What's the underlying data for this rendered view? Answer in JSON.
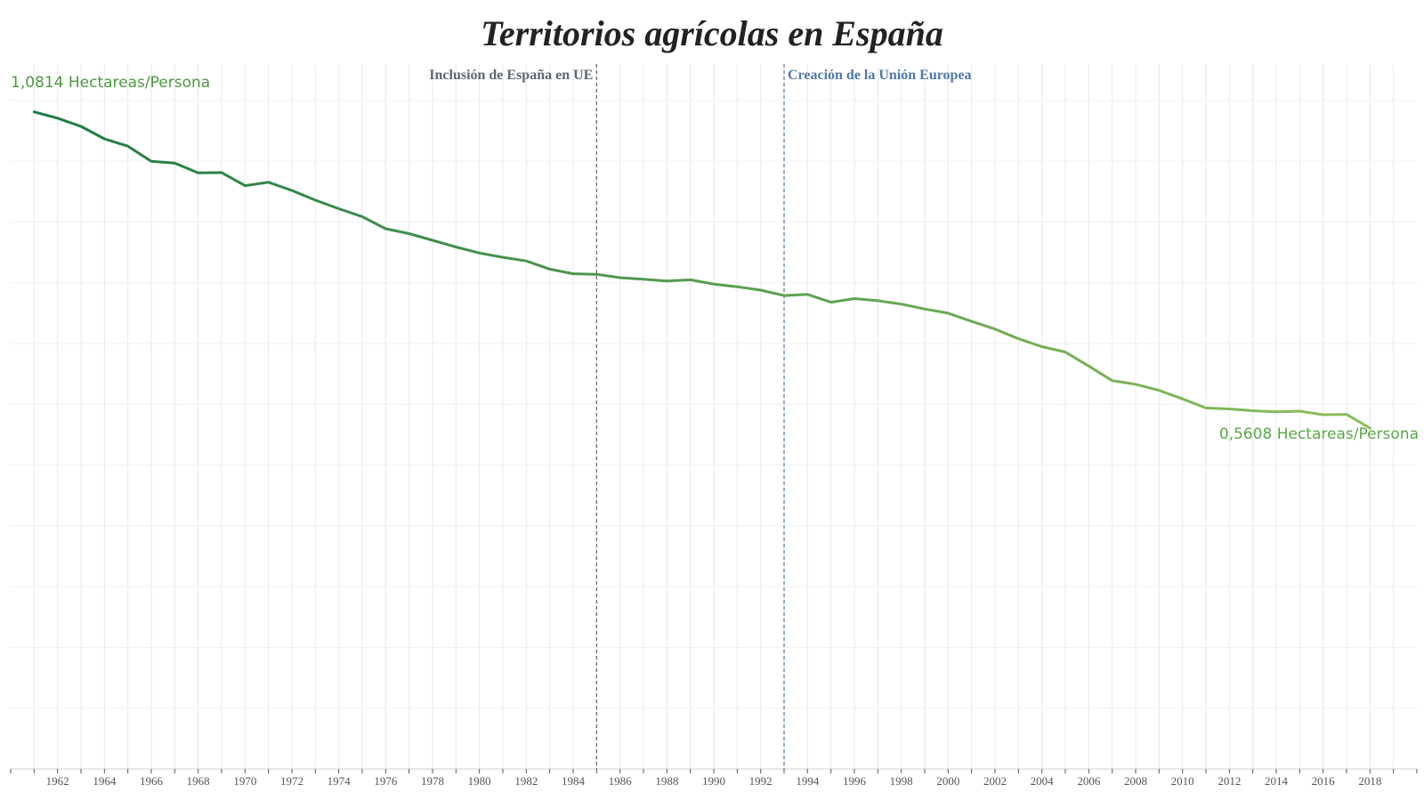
{
  "chart_data": {
    "type": "line",
    "title": "Territorios agrícolas en España",
    "xlabel": "",
    "ylabel": "",
    "xlim": [
      1960,
      2020
    ],
    "ylim": [
      0,
      1.16
    ],
    "grid": {
      "vertical": true,
      "horizontal": true
    },
    "x_tick_labels": [
      "1962",
      "1964",
      "1966",
      "1968",
      "1970",
      "1972",
      "1974",
      "1976",
      "1978",
      "1980",
      "1982",
      "1984",
      "1986",
      "1988",
      "1990",
      "1992",
      "1994",
      "1996",
      "1998",
      "2000",
      "2002",
      "2004",
      "2006",
      "2008",
      "2010",
      "2012",
      "2014",
      "2016",
      "2018"
    ],
    "x": [
      1961,
      1962,
      1963,
      1964,
      1965,
      1966,
      1967,
      1968,
      1969,
      1970,
      1971,
      1972,
      1973,
      1974,
      1975,
      1976,
      1977,
      1978,
      1979,
      1980,
      1981,
      1982,
      1983,
      1984,
      1985,
      1986,
      1987,
      1988,
      1989,
      1990,
      1991,
      1992,
      1993,
      1994,
      1995,
      1996,
      1997,
      1998,
      1999,
      2000,
      2001,
      2002,
      2003,
      2004,
      2005,
      2006,
      2007,
      2008,
      2009,
      2010,
      2011,
      2012,
      2013,
      2014,
      2015,
      2016,
      2017,
      2018
    ],
    "series": [
      {
        "values": [
          1.0814,
          1.071,
          1.0575,
          1.037,
          1.025,
          1.0,
          0.997,
          0.981,
          0.9815,
          0.96,
          0.9655,
          0.952,
          0.936,
          0.922,
          0.909,
          0.889,
          0.881,
          0.87,
          0.859,
          0.849,
          0.842,
          0.836,
          0.8225,
          0.815,
          0.814,
          0.8085,
          0.806,
          0.803,
          0.805,
          0.798,
          0.7935,
          0.788,
          0.779,
          0.781,
          0.768,
          0.774,
          0.7705,
          0.765,
          0.757,
          0.75,
          0.7365,
          0.724,
          0.708,
          0.695,
          0.686,
          0.663,
          0.639,
          0.633,
          0.623,
          0.609,
          0.594,
          0.5925,
          0.5895,
          0.5878,
          0.5888,
          0.583,
          0.5835,
          0.5608
        ],
        "color_start": "#1f7a44",
        "color_end": "#8dbf5a"
      }
    ],
    "annotations": {
      "start_label": "1,0814 Hectareas/Persona",
      "end_label": "0,5608 Hectareas/Persona",
      "start_label_color": "#4a9a3e",
      "end_label_color": "#5aa848"
    },
    "reference_lines": [
      {
        "x": 1985,
        "label": "Inclusión de España en UE",
        "color": "#5f6673"
      },
      {
        "x": 1993,
        "label": "Creación de la Unión Europea",
        "color": "#4e79a7"
      }
    ]
  }
}
